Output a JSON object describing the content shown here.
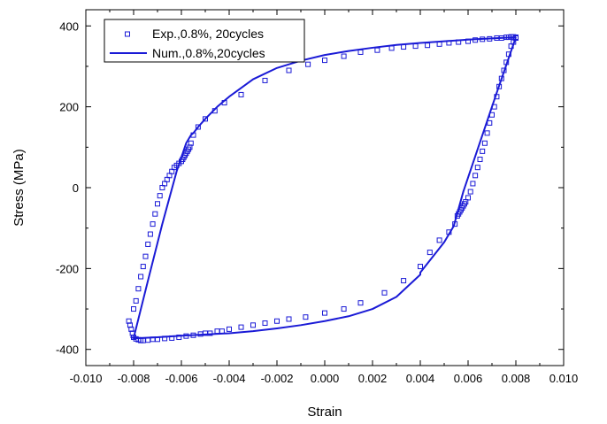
{
  "chart_data": {
    "type": "scatter",
    "xlabel": "Strain",
    "ylabel": "Stress (MPa)",
    "xlim": [
      -0.01,
      0.01
    ],
    "ylim": [
      -440,
      440
    ],
    "xticks": [
      -0.01,
      -0.008,
      -0.006,
      -0.004,
      -0.002,
      0.0,
      0.002,
      0.004,
      0.006,
      0.008,
      0.01
    ],
    "xtick_labels": [
      "-0.010",
      "-0.008",
      "-0.006",
      "-0.004",
      "-0.002",
      "0.000",
      "0.002",
      "0.004",
      "0.006",
      "0.008",
      "0.010"
    ],
    "yticks": [
      -400,
      -200,
      0,
      200,
      400
    ],
    "ytick_labels": [
      "-400",
      "-200",
      "0",
      "200",
      "400"
    ],
    "grid": false,
    "legend_position": "top-left",
    "color": "#1a1ad6",
    "series": [
      {
        "name": "Exp.,0.8%, 20cycles",
        "kind": "markers",
        "marker": "open-square",
        "x": [
          0.008,
          0.0079,
          0.0078,
          0.0077,
          0.0076,
          0.0075,
          0.0074,
          0.0073,
          0.0072,
          0.0071,
          0.007,
          0.0069,
          0.0068,
          0.0067,
          0.0066,
          0.0065,
          0.0064,
          0.0063,
          0.0062,
          0.0061,
          0.006,
          0.0059,
          0.00585,
          0.0058,
          0.00575,
          0.0057,
          0.00565,
          0.0056,
          0.00555,
          0.00545,
          0.0052,
          0.0048,
          0.0044,
          0.004,
          0.0033,
          0.0025,
          0.0015,
          0.0008,
          0.0,
          -0.0008,
          -0.0015,
          -0.002,
          -0.0025,
          -0.003,
          -0.0035,
          -0.004,
          -0.0043,
          -0.0045,
          -0.0048,
          -0.005,
          -0.0052,
          -0.0055,
          -0.0058,
          -0.0061,
          -0.0064,
          -0.0067,
          -0.007,
          -0.0072,
          -0.0074,
          -0.0076,
          -0.0077,
          -0.0078,
          -0.0079,
          -0.008,
          -0.00805,
          -0.0081,
          -0.00815,
          -0.0082,
          -0.008,
          -0.0079,
          -0.0078,
          -0.0077,
          -0.0076,
          -0.0075,
          -0.0074,
          -0.0073,
          -0.0072,
          -0.0071,
          -0.007,
          -0.0069,
          -0.0068,
          -0.0067,
          -0.0066,
          -0.0065,
          -0.0064,
          -0.0063,
          -0.0062,
          -0.0061,
          -0.006,
          -0.00595,
          -0.0059,
          -0.00585,
          -0.0058,
          -0.00575,
          -0.0057,
          -0.00565,
          -0.0056,
          -0.0055,
          -0.0053,
          -0.005,
          -0.0046,
          -0.0042,
          -0.0035,
          -0.0025,
          -0.0015,
          -0.0007,
          0.0,
          0.0008,
          0.0015,
          0.0022,
          0.0028,
          0.0033,
          0.0038,
          0.0043,
          0.0048,
          0.0052,
          0.0056,
          0.006,
          0.0063,
          0.0066,
          0.0069,
          0.0072,
          0.0074,
          0.0076,
          0.0077,
          0.0078,
          0.0079,
          0.008
        ],
        "y": [
          370,
          360,
          350,
          330,
          310,
          290,
          270,
          250,
          225,
          200,
          180,
          160,
          135,
          110,
          90,
          70,
          50,
          30,
          10,
          -10,
          -25,
          -35,
          -40,
          -45,
          -50,
          -55,
          -60,
          -65,
          -70,
          -90,
          -110,
          -130,
          -160,
          -195,
          -230,
          -260,
          -285,
          -300,
          -310,
          -320,
          -325,
          -330,
          -335,
          -340,
          -345,
          -350,
          -355,
          -355,
          -360,
          -360,
          -362,
          -365,
          -367,
          -370,
          -372,
          -373,
          -375,
          -375,
          -377,
          -378,
          -378,
          -376,
          -374,
          -370,
          -360,
          -350,
          -340,
          -330,
          -300,
          -280,
          -250,
          -220,
          -195,
          -170,
          -140,
          -115,
          -90,
          -65,
          -40,
          -20,
          0,
          10,
          20,
          30,
          40,
          50,
          55,
          60,
          65,
          70,
          75,
          80,
          85,
          90,
          95,
          100,
          110,
          130,
          150,
          170,
          190,
          210,
          230,
          265,
          290,
          305,
          315,
          325,
          335,
          340,
          345,
          348,
          350,
          352,
          355,
          358,
          360,
          362,
          365,
          367,
          368,
          370,
          370,
          372,
          372,
          373,
          373,
          372
        ]
      },
      {
        "name": "Num.,0.8%,20cycles",
        "kind": "line",
        "x": [
          0.008,
          0.0072,
          0.0064,
          0.0058,
          0.0054,
          0.005,
          0.0046,
          0.004,
          0.004,
          0.003,
          0.002,
          0.001,
          0.0,
          -0.001,
          -0.002,
          -0.003,
          -0.004,
          -0.005,
          -0.006,
          -0.007,
          -0.0078,
          -0.008,
          -0.0081,
          -0.008,
          -0.0074,
          -0.0068,
          -0.0062,
          -0.0058,
          -0.0056,
          -0.0055,
          -0.0053,
          -0.005,
          -0.0045,
          -0.004,
          -0.003,
          -0.002,
          -0.001,
          0.0,
          0.001,
          0.002,
          0.003,
          0.004,
          0.005,
          0.006,
          0.007,
          0.008
        ],
        "y": [
          372,
          235,
          95,
          -10,
          -95,
          -135,
          -165,
          -210,
          -215,
          -270,
          -300,
          -318,
          -330,
          -340,
          -348,
          -355,
          -360,
          -363,
          -366,
          -370,
          -372,
          -372,
          -370,
          -372,
          -230,
          -90,
          40,
          110,
          130,
          135,
          150,
          170,
          200,
          225,
          268,
          296,
          314,
          328,
          338,
          346,
          353,
          358,
          362,
          366,
          369,
          372
        ]
      }
    ]
  }
}
